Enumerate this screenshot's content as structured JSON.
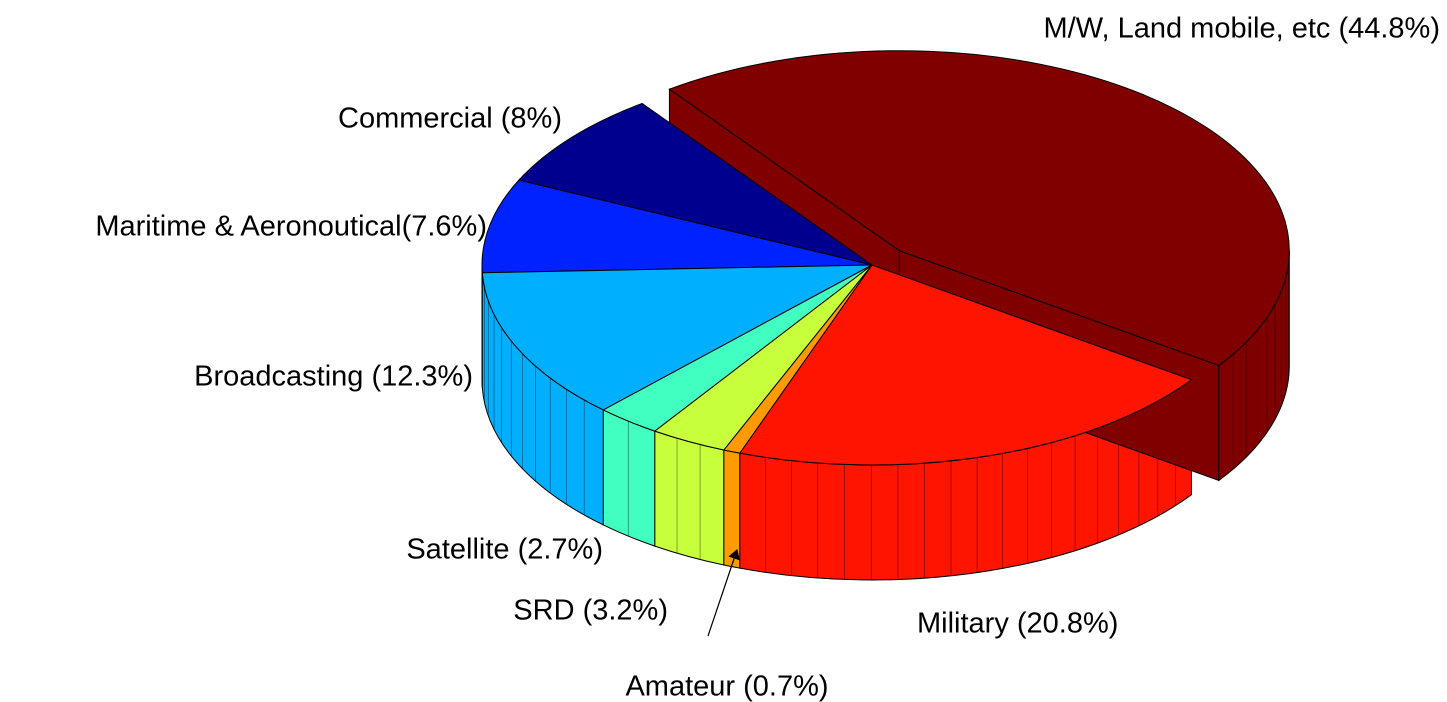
{
  "chart_data": {
    "type": "pie3d",
    "categories": [
      "M/W, Land mobile, etc (44.8%)",
      "Commercial (8%)",
      "Maritime & Aeronoutical(7.6%)",
      "Broadcasting (12.3%)",
      "Satellite (2.7%)",
      "SRD (3.2%)",
      "Amateur (0.7%)",
      "Military (20.8%)"
    ],
    "values": [
      44.8,
      8,
      7.6,
      12.3,
      2.7,
      3.2,
      0.7,
      20.8
    ],
    "colors": [
      "#800000",
      "#00008f",
      "#0022ff",
      "#00b0ff",
      "#40ffc0",
      "#c8ff3c",
      "#ff9a00",
      "#ff1400"
    ],
    "explode": [
      true,
      false,
      false,
      false,
      false,
      false,
      false,
      false
    ]
  }
}
